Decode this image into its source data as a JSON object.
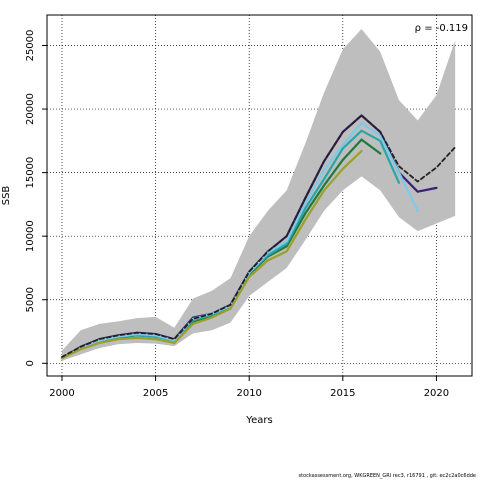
{
  "chart_data": {
    "type": "line",
    "title": "",
    "xlabel": "Years",
    "ylabel": "SSB",
    "annotation": "ρ = -0.119",
    "footer": "stockassessment.org, WKGREEN_GRI rec3, r16791 , git: ec2c2a0c6dde",
    "xlim": [
      1999.2,
      2021.9
    ],
    "ylim": [
      -1000,
      27400
    ],
    "x_ticks": [
      2000,
      2005,
      2010,
      2015,
      2020
    ],
    "y_ticks": [
      0,
      5000,
      10000,
      15000,
      20000,
      25000
    ],
    "grid": true,
    "band": {
      "x": [
        2000,
        2001,
        2002,
        2003,
        2004,
        2005,
        2006,
        2007,
        2008,
        2009,
        2010,
        2011,
        2012,
        2013,
        2014,
        2015,
        2016,
        2017,
        2018,
        2019,
        2020,
        2021
      ],
      "lower": [
        200,
        700,
        1200,
        1500,
        1600,
        1550,
        1350,
        2350,
        2600,
        3200,
        5300,
        6400,
        7500,
        9700,
        12000,
        13600,
        14700,
        13600,
        11500,
        10400,
        11000,
        11600
      ],
      "upper": [
        1000,
        2600,
        3100,
        3300,
        3550,
        3650,
        2800,
        5100,
        5700,
        6700,
        10000,
        12000,
        13600,
        17300,
        21300,
        24700,
        26300,
        24500,
        20700,
        19100,
        21100,
        25400
      ],
      "color": "#bebebe"
    },
    "series": [
      {
        "color": "#3a1e78",
        "dashed": false,
        "x": [
          2000,
          2001,
          2002,
          2003,
          2004,
          2005,
          2006,
          2007,
          2008,
          2009,
          2010,
          2011,
          2012,
          2013,
          2014,
          2015,
          2016,
          2017,
          2018,
          2019,
          2020
        ],
        "values": [
          400,
          1300,
          1900,
          2200,
          2400,
          2300,
          1900,
          3600,
          3900,
          4600,
          7200,
          8800,
          10000,
          13000,
          15900,
          18200,
          19500,
          18200,
          15000,
          13500,
          13800
        ]
      },
      {
        "color": "#1f7a3c",
        "dashed": false,
        "x": [
          2000,
          2001,
          2002,
          2003,
          2004,
          2005,
          2006,
          2007,
          2008,
          2009,
          2010,
          2011,
          2012,
          2013,
          2014,
          2015,
          2016,
          2017
        ],
        "values": [
          400,
          1200,
          1800,
          2000,
          2200,
          2100,
          1800,
          3300,
          3700,
          4400,
          7000,
          8400,
          9200,
          11800,
          14000,
          16000,
          17600,
          16500
        ]
      },
      {
        "color": "#2aa6a6",
        "dashed": false,
        "x": [
          2000,
          2001,
          2002,
          2003,
          2004,
          2005,
          2006,
          2007,
          2008,
          2009,
          2010,
          2011,
          2012,
          2013,
          2014,
          2015,
          2016,
          2017,
          2018
        ],
        "values": [
          400,
          1200,
          1800,
          2100,
          2200,
          2100,
          1800,
          3400,
          3800,
          4500,
          7100,
          8500,
          9400,
          12200,
          14500,
          16900,
          18300,
          17500,
          14200
        ]
      },
      {
        "color": "#7fc8e8",
        "dashed": false,
        "x": [
          2000,
          2001,
          2002,
          2003,
          2004,
          2005,
          2006,
          2007,
          2008,
          2009,
          2010,
          2011,
          2012,
          2013,
          2014,
          2015,
          2016,
          2017,
          2018,
          2019
        ],
        "values": [
          400,
          1200,
          1800,
          2100,
          2300,
          2200,
          1800,
          3500,
          3900,
          4500,
          7100,
          8700,
          9600,
          12600,
          15200,
          17200,
          18900,
          17900,
          15000,
          12000
        ]
      },
      {
        "color": "#9aa02a",
        "dashed": false,
        "x": [
          2000,
          2001,
          2002,
          2003,
          2004,
          2005,
          2006,
          2007,
          2008,
          2009,
          2010,
          2011,
          2012,
          2013,
          2014,
          2015,
          2016
        ],
        "values": [
          400,
          1100,
          1600,
          1900,
          2000,
          1900,
          1600,
          3100,
          3600,
          4300,
          6800,
          8100,
          8800,
          11300,
          13600,
          15300,
          16700
        ]
      },
      {
        "color": "#222222",
        "dashed": true,
        "x": [
          2000,
          2001,
          2002,
          2003,
          2004,
          2005,
          2006,
          2007,
          2008,
          2009,
          2010,
          2011,
          2012,
          2013,
          2014,
          2015,
          2016,
          2017,
          2018,
          2019,
          2020,
          2021
        ],
        "values": [
          500,
          1300,
          1900,
          2200,
          2400,
          2300,
          1900,
          3500,
          3900,
          4600,
          7200,
          8800,
          10000,
          13000,
          15900,
          18200,
          19500,
          18200,
          15500,
          14300,
          15400,
          17000
        ]
      }
    ]
  }
}
